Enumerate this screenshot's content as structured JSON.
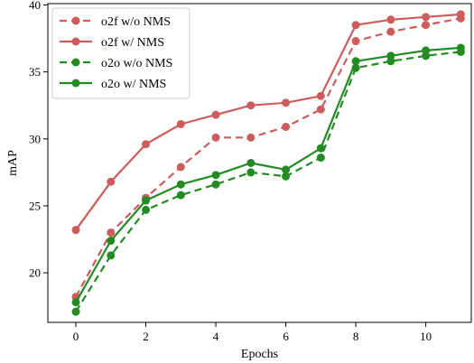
{
  "chart_data": {
    "type": "line",
    "xlabel": "Epochs",
    "ylabel": "mAP",
    "xlim": [
      -0.8,
      11.3
    ],
    "ylim": [
      16.3,
      40.1
    ],
    "xticks": [
      0,
      2,
      4,
      6,
      8,
      10
    ],
    "yticks": [
      20,
      25,
      30,
      35,
      40
    ],
    "x": [
      0,
      1,
      2,
      3,
      4,
      5,
      6,
      7,
      8,
      9,
      10,
      11
    ],
    "grid": false,
    "legend_position": "top-left",
    "series": [
      {
        "name": "o2f w/o NMS",
        "color": "#cd5c5c",
        "style": "dashed",
        "values": [
          18.2,
          23.0,
          25.6,
          27.9,
          30.1,
          30.1,
          30.9,
          32.2,
          37.3,
          38.0,
          38.5,
          39.0
        ]
      },
      {
        "name": "o2f w/ NMS",
        "color": "#cd5c5c",
        "style": "solid",
        "values": [
          23.2,
          26.8,
          29.6,
          31.1,
          31.8,
          32.5,
          32.7,
          33.2,
          38.5,
          38.9,
          39.1,
          39.3
        ]
      },
      {
        "name": "o2o w/o NMS",
        "color": "#228b22",
        "style": "dashed",
        "values": [
          17.1,
          21.3,
          24.7,
          25.8,
          26.6,
          27.5,
          27.2,
          28.6,
          35.3,
          35.8,
          36.2,
          36.5
        ]
      },
      {
        "name": "o2o w/ NMS",
        "color": "#228b22",
        "style": "solid",
        "values": [
          17.8,
          22.4,
          25.4,
          26.6,
          27.3,
          28.2,
          27.7,
          29.3,
          35.8,
          36.2,
          36.6,
          36.8
        ]
      }
    ]
  }
}
